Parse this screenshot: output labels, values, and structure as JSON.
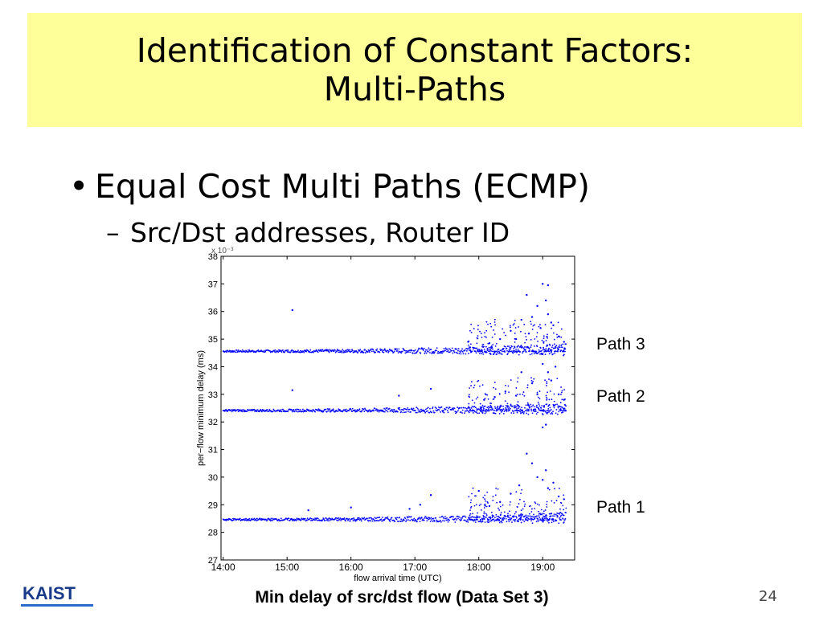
{
  "slide": {
    "title_line1": "Identification of Constant Factors:",
    "title_line2": "Multi-Paths",
    "bullet1_marker": "•",
    "bullet1": "Equal Cost Multi Paths (ECMP)",
    "bullet2_marker": "–",
    "bullet2": "Src/Dst addresses, Router ID",
    "labels": {
      "path3": "Path 3",
      "path2": "Path 2",
      "path1": "Path 1"
    },
    "caption": "Min delay of src/dst flow (Data Set 3)",
    "page_number": "24",
    "logo_text": "KAIST"
  },
  "chart_data": {
    "type": "scatter",
    "title": "",
    "xlabel": "flow arrival time (UTC)",
    "ylabel": "per−flow minimum delay (ms)",
    "exponent_label": "x 10⁻³",
    "x_ticks": [
      "14:00",
      "15:00",
      "16:00",
      "17:00",
      "18:00",
      "19:00"
    ],
    "y_ticks": [
      27,
      28,
      29,
      30,
      31,
      32,
      33,
      34,
      35,
      36,
      37,
      38
    ],
    "xlim": [
      "13:58",
      "19:30"
    ],
    "ylim": [
      27,
      38
    ],
    "point_color": "#0000ff",
    "series": [
      {
        "baseline_ms": 34.55,
        "outliers": [
          [
            "15:05",
            36.05
          ],
          [
            "18:45",
            36.6
          ],
          [
            "18:55",
            36.2
          ],
          [
            "19:00",
            37.0
          ],
          [
            "19:05",
            36.95
          ],
          [
            "19:03",
            36.4
          ],
          [
            "18:40",
            35.7
          ],
          [
            "18:30",
            35.3
          ],
          [
            "18:50",
            35.8
          ],
          [
            "19:10",
            35.5
          ],
          [
            "19:15",
            35.1
          ],
          [
            "18:20",
            35.0
          ],
          [
            "17:50",
            34.9
          ],
          [
            "18:58",
            35.4
          ],
          [
            "19:05",
            35.9
          ],
          [
            "18:35",
            35.0
          ],
          [
            "19:20",
            34.9
          ],
          [
            "18:10",
            34.85
          ],
          [
            "18:47",
            35.2
          ],
          [
            "19:08",
            35.6
          ]
        ]
      },
      {
        "baseline_ms": 32.4,
        "outliers": [
          [
            "15:05",
            33.15
          ],
          [
            "16:45",
            32.95
          ],
          [
            "17:15",
            33.2
          ],
          [
            "18:40",
            33.8
          ],
          [
            "18:50",
            33.4
          ],
          [
            "19:00",
            34.1
          ],
          [
            "19:05",
            33.8
          ],
          [
            "19:12",
            34.0
          ],
          [
            "18:25",
            33.1
          ],
          [
            "18:15",
            32.9
          ],
          [
            "19:00",
            31.8
          ],
          [
            "19:03",
            31.9
          ],
          [
            "18:55",
            33.0
          ],
          [
            "19:15",
            33.0
          ],
          [
            "18:05",
            32.8
          ],
          [
            "19:08",
            33.5
          ],
          [
            "18:35",
            32.95
          ],
          [
            "19:20",
            32.8
          ]
        ]
      },
      {
        "baseline_ms": 28.45,
        "outliers": [
          [
            "17:15",
            29.35
          ],
          [
            "17:05",
            29.0
          ],
          [
            "18:00",
            29.5
          ],
          [
            "18:45",
            30.85
          ],
          [
            "18:50",
            30.5
          ],
          [
            "18:55",
            30.0
          ],
          [
            "19:03",
            30.25
          ],
          [
            "19:05",
            29.6
          ],
          [
            "18:38",
            29.7
          ],
          [
            "18:30",
            29.4
          ],
          [
            "19:10",
            29.8
          ],
          [
            "19:15",
            29.3
          ],
          [
            "18:20",
            29.1
          ],
          [
            "15:20",
            28.8
          ],
          [
            "16:00",
            28.9
          ],
          [
            "16:55",
            28.85
          ],
          [
            "19:00",
            29.9
          ],
          [
            "18:10",
            28.95
          ],
          [
            "19:20",
            29.2
          ]
        ]
      }
    ]
  }
}
